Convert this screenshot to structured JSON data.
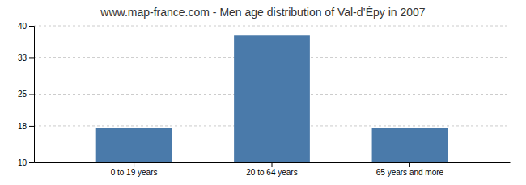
{
  "chart_data": {
    "type": "bar",
    "title": "www.map-france.com - Men age distribution of Val-d’Épy in 2007",
    "categories": [
      "0 to 19 years",
      "20 to 64 years",
      "65 years and more"
    ],
    "values": [
      17.5,
      38.0,
      17.5
    ],
    "color": "#4a7aaa",
    "ylim": [
      10,
      40
    ],
    "yticks": [
      10,
      18,
      25,
      33,
      40
    ],
    "grid": true
  }
}
